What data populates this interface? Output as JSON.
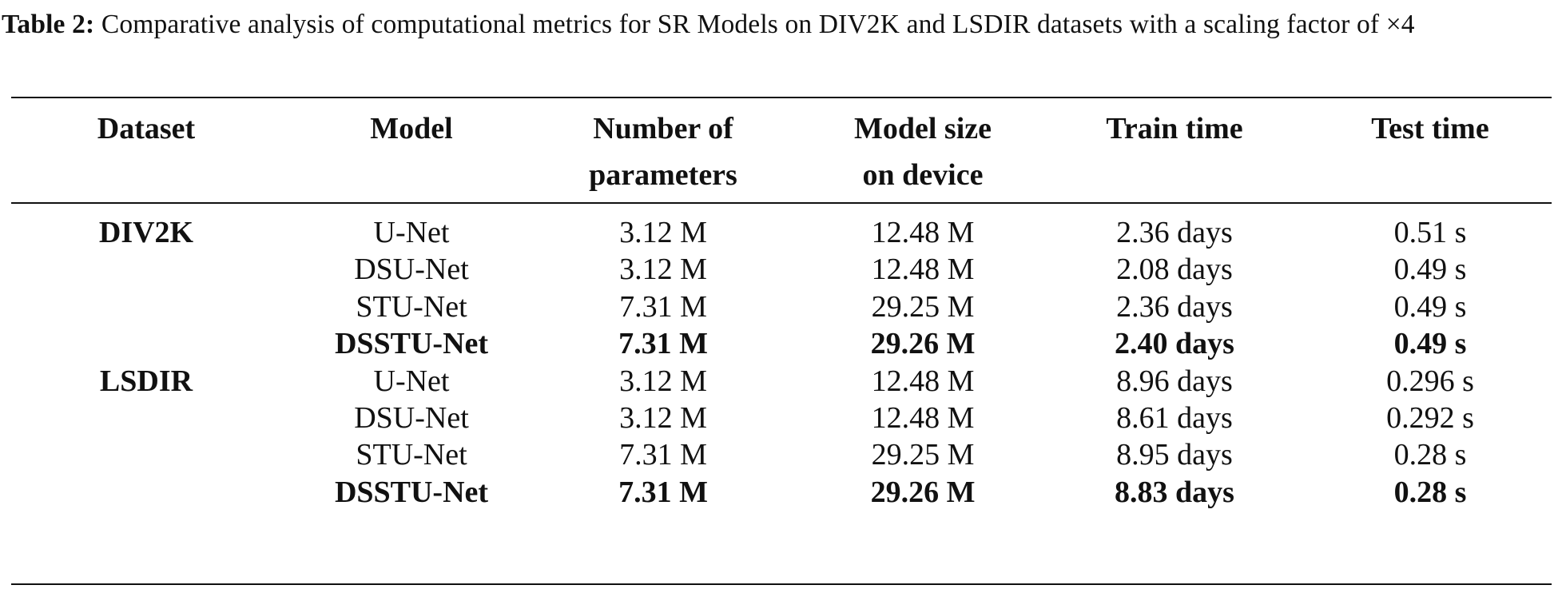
{
  "caption": {
    "label": "Table 2:",
    "text": "Comparative analysis of computational metrics for SR Models on DIV2K and LSDIR datasets with a scaling factor of ×4"
  },
  "table": {
    "headers": {
      "dataset": "Dataset",
      "model": "Model",
      "params_line1": "Number of",
      "params_line2": "parameters",
      "size_line1": "Model size",
      "size_line2": "on device",
      "train": "Train time",
      "test": "Test time"
    },
    "rows": [
      {
        "dataset": "DIV2K",
        "model": "U-Net",
        "params": "3.12 M",
        "size": "12.48 M",
        "train": "2.36 days",
        "test": "0.51 s",
        "bold": false
      },
      {
        "dataset": "",
        "model": "DSU-Net",
        "params": "3.12 M",
        "size": "12.48 M",
        "train": "2.08 days",
        "test": "0.49 s",
        "bold": false
      },
      {
        "dataset": "",
        "model": "STU-Net",
        "params": "7.31 M",
        "size": "29.25 M",
        "train": "2.36 days",
        "test": "0.49 s",
        "bold": false
      },
      {
        "dataset": "",
        "model": "DSSTU-Net",
        "params": "7.31 M",
        "size": "29.26 M",
        "train": "2.40 days",
        "test": "0.49 s",
        "bold": true
      },
      {
        "dataset": "LSDIR",
        "model": "U-Net",
        "params": "3.12 M",
        "size": "12.48 M",
        "train": "8.96 days",
        "test": "0.296 s",
        "bold": false
      },
      {
        "dataset": "",
        "model": "DSU-Net",
        "params": "3.12 M",
        "size": "12.48 M",
        "train": "8.61 days",
        "test": "0.292 s",
        "bold": false
      },
      {
        "dataset": "",
        "model": "STU-Net",
        "params": "7.31 M",
        "size": "29.25 M",
        "train": "8.95 days",
        "test": "0.28 s",
        "bold": false
      },
      {
        "dataset": "",
        "model": "DSSTU-Net",
        "params": "7.31 M",
        "size": "29.26 M",
        "train": "8.83 days",
        "test": "0.28 s",
        "bold": true
      }
    ]
  }
}
